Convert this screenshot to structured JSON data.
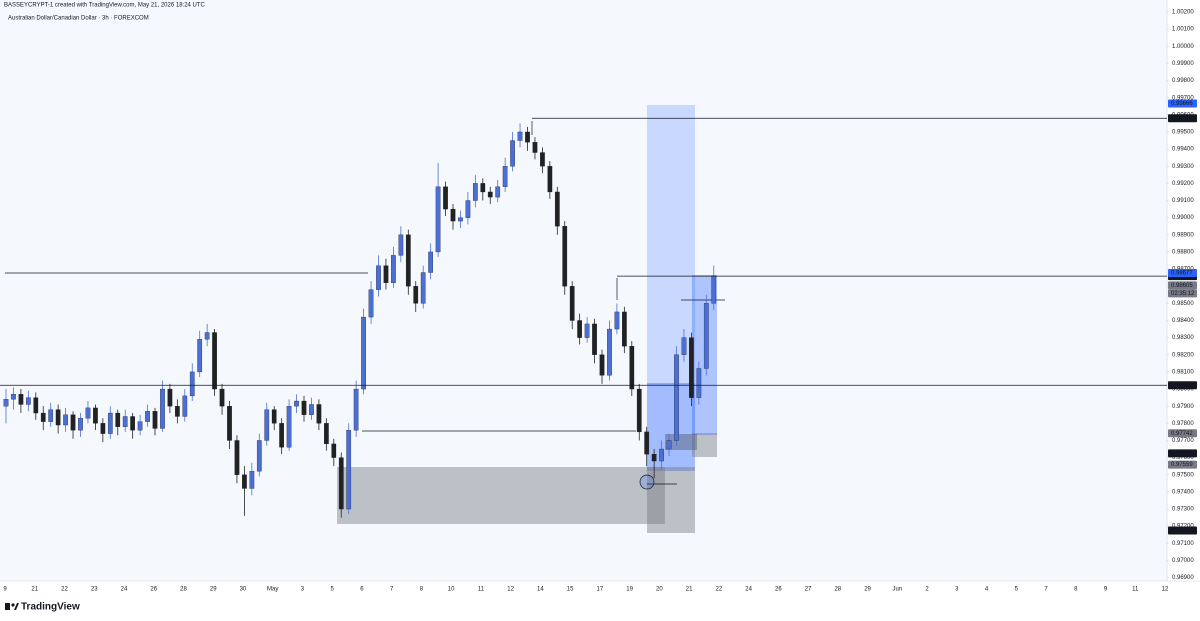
{
  "header": {
    "credit": "BASSEYCRYPT-1 created with TradingView.com, May 21, 2026 18:24 UTC"
  },
  "brand": "TradingView",
  "chart_data": {
    "type": "candlestick",
    "title": "Australian Dollar/Canadian Dollar · 3h · FOREXCOM",
    "up_color": "#4c6fd6",
    "down_color": "#222222",
    "grid": false,
    "ylim": [
      0.9688,
      1.0027
    ],
    "yticks": [
      {
        "value": 1.002,
        "label": "1.00200"
      },
      {
        "value": 1.001,
        "label": "1.00100"
      },
      {
        "value": 1.0,
        "label": "1.00000"
      },
      {
        "value": 0.999,
        "label": "0.99900"
      },
      {
        "value": 0.998,
        "label": "0.99800"
      },
      {
        "value": 0.997,
        "label": "0.99700"
      },
      {
        "value": 0.996,
        "label": "0.99600"
      },
      {
        "value": 0.995,
        "label": "0.99500"
      },
      {
        "value": 0.994,
        "label": "0.99400"
      },
      {
        "value": 0.993,
        "label": "0.99300"
      },
      {
        "value": 0.992,
        "label": "0.99200"
      },
      {
        "value": 0.991,
        "label": "0.99100"
      },
      {
        "value": 0.99,
        "label": "0.99000"
      },
      {
        "value": 0.989,
        "label": "0.98900"
      },
      {
        "value": 0.988,
        "label": "0.98800"
      },
      {
        "value": 0.987,
        "label": "0.98700"
      },
      {
        "value": 0.986,
        "label": "0.98600"
      },
      {
        "value": 0.985,
        "label": "0.98500"
      },
      {
        "value": 0.984,
        "label": "0.98400"
      },
      {
        "value": 0.983,
        "label": "0.98300"
      },
      {
        "value": 0.982,
        "label": "0.98200"
      },
      {
        "value": 0.981,
        "label": "0.98100"
      },
      {
        "value": 0.98,
        "label": "0.98000"
      },
      {
        "value": 0.979,
        "label": "0.97900"
      },
      {
        "value": 0.978,
        "label": "0.97800"
      },
      {
        "value": 0.977,
        "label": "0.97700"
      },
      {
        "value": 0.976,
        "label": "0.97600"
      },
      {
        "value": 0.975,
        "label": "0.97500"
      },
      {
        "value": 0.974,
        "label": "0.97400"
      },
      {
        "value": 0.973,
        "label": "0.97300"
      },
      {
        "value": 0.972,
        "label": "0.97200"
      },
      {
        "value": 0.971,
        "label": "0.97100"
      },
      {
        "value": 0.97,
        "label": "0.97000"
      },
      {
        "value": 0.969,
        "label": "0.96900"
      }
    ],
    "x_labels": [
      "9",
      "21",
      "22",
      "23",
      "24",
      "26",
      "28",
      "29",
      "30",
      "May",
      "3",
      "5",
      "6",
      "7",
      "8",
      "10",
      "11",
      "12",
      "14",
      "15",
      "17",
      "19",
      "20",
      "21",
      "22",
      "24",
      "26",
      "27",
      "28",
      "29",
      "Jun",
      "2",
      "3",
      "4",
      "5",
      "7",
      "8",
      "9",
      "11",
      "12"
    ],
    "price_lines": [
      {
        "value": 0.9958,
        "label": "0.99580",
        "color": "#131722"
      },
      {
        "value": 0.98659,
        "label": "0.98659",
        "color": "#131722"
      },
      {
        "value": 0.98022,
        "label": "0.98022",
        "color": "#131722"
      }
    ],
    "price_labels": [
      {
        "value": 0.99666,
        "label": "0.99666",
        "color": "#2962ff"
      },
      {
        "value": 0.98677,
        "label": "0.98677",
        "color": "#2962ff"
      },
      {
        "value": 0.98605,
        "label": "0.98605",
        "color": "#787b86"
      },
      {
        "value": 0.97742,
        "label": "0.97742",
        "color": "#787b86"
      },
      {
        "value": 0.97625,
        "label": "0.97625",
        "color": "#131722"
      },
      {
        "value": 0.97559,
        "label": "0.97559",
        "color": "#787b86"
      },
      {
        "value": 0.97175,
        "label": "0.97175",
        "color": "#131722"
      }
    ],
    "countdown": "02:35:12",
    "candles": [
      [
        0.979,
        0.98,
        0.978,
        0.9794
      ],
      [
        0.9794,
        0.9801,
        0.9788,
        0.9797
      ],
      [
        0.9797,
        0.98,
        0.9786,
        0.9791
      ],
      [
        0.9791,
        0.9799,
        0.9787,
        0.9795
      ],
      [
        0.9795,
        0.9798,
        0.9782,
        0.9786
      ],
      [
        0.9786,
        0.979,
        0.9776,
        0.9781
      ],
      [
        0.9781,
        0.9792,
        0.9778,
        0.9788
      ],
      [
        0.9788,
        0.9791,
        0.9774,
        0.9779
      ],
      [
        0.9779,
        0.9789,
        0.9775,
        0.9785
      ],
      [
        0.9785,
        0.9787,
        0.9771,
        0.9776
      ],
      [
        0.9776,
        0.9786,
        0.9772,
        0.9783
      ],
      [
        0.9783,
        0.9793,
        0.978,
        0.9789
      ],
      [
        0.9789,
        0.9791,
        0.9776,
        0.978
      ],
      [
        0.978,
        0.9783,
        0.9769,
        0.9774
      ],
      [
        0.9774,
        0.979,
        0.9771,
        0.9786
      ],
      [
        0.9786,
        0.9788,
        0.9773,
        0.9778
      ],
      [
        0.9778,
        0.9788,
        0.9775,
        0.9784
      ],
      [
        0.9784,
        0.9786,
        0.9771,
        0.9776
      ],
      [
        0.9776,
        0.9785,
        0.9773,
        0.9781
      ],
      [
        0.9781,
        0.9791,
        0.9778,
        0.9787
      ],
      [
        0.9787,
        0.9789,
        0.9773,
        0.9777
      ],
      [
        0.9777,
        0.9805,
        0.9775,
        0.98
      ],
      [
        0.98,
        0.9803,
        0.9786,
        0.979
      ],
      [
        0.979,
        0.9794,
        0.978,
        0.9784
      ],
      [
        0.9784,
        0.98,
        0.9781,
        0.9796
      ],
      [
        0.9796,
        0.9815,
        0.9793,
        0.981
      ],
      [
        0.981,
        0.9834,
        0.9807,
        0.9829
      ],
      [
        0.9829,
        0.9838,
        0.9825,
        0.9833
      ],
      [
        0.9833,
        0.9835,
        0.9796,
        0.98
      ],
      [
        0.98,
        0.9803,
        0.9785,
        0.979
      ],
      [
        0.979,
        0.9793,
        0.9765,
        0.977
      ],
      [
        0.977,
        0.9773,
        0.9745,
        0.975
      ],
      [
        0.975,
        0.9755,
        0.9726,
        0.9742
      ],
      [
        0.9742,
        0.9757,
        0.9738,
        0.9752
      ],
      [
        0.9752,
        0.9774,
        0.9749,
        0.977
      ],
      [
        0.977,
        0.9792,
        0.9767,
        0.9788
      ],
      [
        0.9788,
        0.979,
        0.9776,
        0.978
      ],
      [
        0.978,
        0.9783,
        0.9762,
        0.9766
      ],
      [
        0.9766,
        0.9794,
        0.9764,
        0.979
      ],
      [
        0.979,
        0.9797,
        0.9786,
        0.9793
      ],
      [
        0.9793,
        0.9796,
        0.9781,
        0.9785
      ],
      [
        0.9785,
        0.9795,
        0.9782,
        0.9791
      ],
      [
        0.9791,
        0.9794,
        0.9776,
        0.978
      ],
      [
        0.978,
        0.9783,
        0.9764,
        0.9768
      ],
      [
        0.9768,
        0.9771,
        0.9755,
        0.976
      ],
      [
        0.976,
        0.9763,
        0.9725,
        0.973
      ],
      [
        0.973,
        0.978,
        0.9727,
        0.9776
      ],
      [
        0.9776,
        0.9805,
        0.9772,
        0.98
      ],
      [
        0.98,
        0.9847,
        0.9797,
        0.9842
      ],
      [
        0.9842,
        0.9863,
        0.9838,
        0.9858
      ],
      [
        0.9858,
        0.9878,
        0.9854,
        0.9872
      ],
      [
        0.9872,
        0.9876,
        0.9858,
        0.9862
      ],
      [
        0.9862,
        0.9883,
        0.9859,
        0.9878
      ],
      [
        0.9878,
        0.9895,
        0.9874,
        0.989
      ],
      [
        0.989,
        0.9893,
        0.9855,
        0.986
      ],
      [
        0.986,
        0.9863,
        0.9845,
        0.985
      ],
      [
        0.985,
        0.9872,
        0.9847,
        0.9868
      ],
      [
        0.9868,
        0.9885,
        0.9864,
        0.988
      ],
      [
        0.988,
        0.9932,
        0.9877,
        0.9918
      ],
      [
        0.9918,
        0.9921,
        0.9901,
        0.9905
      ],
      [
        0.9905,
        0.9908,
        0.9893,
        0.9898
      ],
      [
        0.9898,
        0.9904,
        0.9894,
        0.99
      ],
      [
        0.99,
        0.9915,
        0.9896,
        0.991
      ],
      [
        0.991,
        0.9925,
        0.9906,
        0.992
      ],
      [
        0.992,
        0.9923,
        0.991,
        0.9915
      ],
      [
        0.9915,
        0.9918,
        0.9908,
        0.9912
      ],
      [
        0.9912,
        0.9922,
        0.9909,
        0.9918
      ],
      [
        0.9918,
        0.9935,
        0.9915,
        0.993
      ],
      [
        0.993,
        0.995,
        0.9927,
        0.9945
      ],
      [
        0.9945,
        0.9955,
        0.9941,
        0.995
      ],
      [
        0.995,
        0.9953,
        0.9939,
        0.9944
      ],
      [
        0.9944,
        0.9947,
        0.9934,
        0.9938
      ],
      [
        0.9938,
        0.9941,
        0.9926,
        0.993
      ],
      [
        0.993,
        0.9933,
        0.9911,
        0.9915
      ],
      [
        0.9915,
        0.9918,
        0.989,
        0.9895
      ],
      [
        0.9895,
        0.9898,
        0.9855,
        0.986
      ],
      [
        0.986,
        0.9863,
        0.9835,
        0.984
      ],
      [
        0.984,
        0.9844,
        0.9826,
        0.983
      ],
      [
        0.983,
        0.9842,
        0.9827,
        0.9838
      ],
      [
        0.9838,
        0.9841,
        0.9815,
        0.982
      ],
      [
        0.982,
        0.9823,
        0.9803,
        0.9808
      ],
      [
        0.9808,
        0.984,
        0.9805,
        0.9835
      ],
      [
        0.9835,
        0.985,
        0.9832,
        0.9845
      ],
      [
        0.9845,
        0.9848,
        0.9821,
        0.9825
      ],
      [
        0.9825,
        0.9828,
        0.9796,
        0.98
      ],
      [
        0.98,
        0.9803,
        0.977,
        0.9775
      ],
      [
        0.9775,
        0.9778,
        0.9755,
        0.9762
      ],
      [
        0.9762,
        0.9765,
        0.9748,
        0.9758
      ],
      [
        0.9758,
        0.977,
        0.9753,
        0.9765
      ],
      [
        0.9765,
        0.9774,
        0.9761,
        0.977
      ],
      [
        0.977,
        0.9825,
        0.9767,
        0.982
      ],
      [
        0.982,
        0.9835,
        0.9816,
        0.983
      ],
      [
        0.983,
        0.9833,
        0.979,
        0.9795
      ],
      [
        0.9795,
        0.9816,
        0.9791,
        0.9812
      ],
      [
        0.9812,
        0.9855,
        0.9808,
        0.985
      ],
      [
        0.985,
        0.9872,
        0.9846,
        0.9866
      ]
    ]
  }
}
